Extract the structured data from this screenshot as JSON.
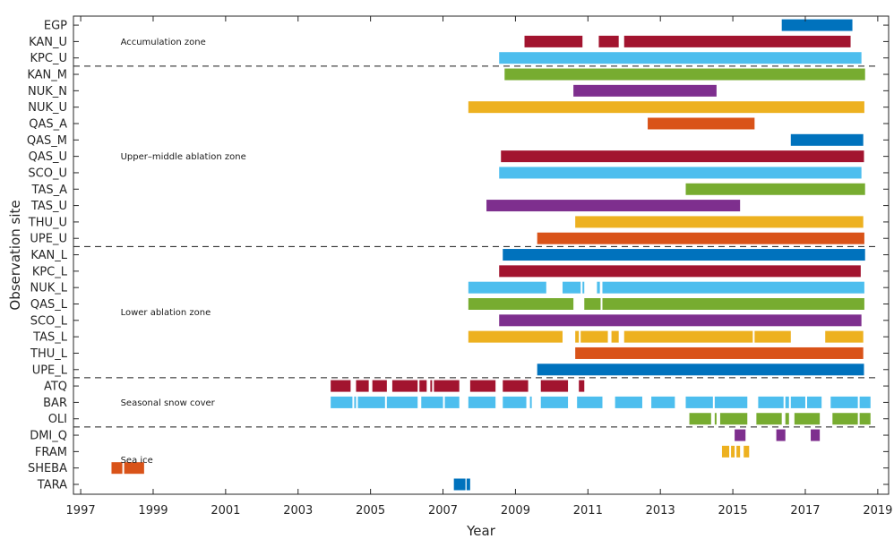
{
  "chart_data": {
    "type": "timeline",
    "xlabel": "Year",
    "ylabel": "Observation site",
    "xlim": [
      1996.8,
      2019.3
    ],
    "x_ticks": [
      1997,
      1999,
      2001,
      2003,
      2005,
      2007,
      2009,
      2011,
      2013,
      2015,
      2017,
      2019
    ],
    "grid": false,
    "colors": [
      "#0072BD",
      "#A2142F",
      "#4DBEEE",
      "#77AC30",
      "#7E2F8E",
      "#EDB120",
      "#D95319"
    ],
    "rows": [
      {
        "site": "EGP",
        "color": "#0072BD",
        "segments": [
          [
            2016.35,
            2018.3
          ]
        ]
      },
      {
        "site": "KAN_U",
        "color": "#A2142F",
        "segments": [
          [
            2009.25,
            2010.85
          ],
          [
            2011.3,
            2011.85
          ],
          [
            2012.0,
            2018.25
          ]
        ]
      },
      {
        "site": "KPC_U",
        "color": "#4DBEEE",
        "segments": [
          [
            2008.55,
            2018.55
          ]
        ]
      },
      {
        "site": "KAN_M",
        "color": "#77AC30",
        "segments": [
          [
            2008.7,
            2018.65
          ]
        ]
      },
      {
        "site": "NUK_N",
        "color": "#7E2F8E",
        "segments": [
          [
            2010.6,
            2014.55
          ]
        ]
      },
      {
        "site": "NUK_U",
        "color": "#EDB120",
        "segments": [
          [
            2007.7,
            2018.63
          ]
        ]
      },
      {
        "site": "QAS_A",
        "color": "#D95319",
        "segments": [
          [
            2012.65,
            2015.6
          ]
        ]
      },
      {
        "site": "QAS_M",
        "color": "#0072BD",
        "segments": [
          [
            2016.6,
            2018.6
          ]
        ]
      },
      {
        "site": "QAS_U",
        "color": "#A2142F",
        "segments": [
          [
            2008.6,
            2018.62
          ]
        ]
      },
      {
        "site": "SCO_U",
        "color": "#4DBEEE",
        "segments": [
          [
            2008.55,
            2018.55
          ]
        ]
      },
      {
        "site": "TAS_A",
        "color": "#77AC30",
        "segments": [
          [
            2013.7,
            2018.65
          ]
        ]
      },
      {
        "site": "TAS_U",
        "color": "#7E2F8E",
        "segments": [
          [
            2008.2,
            2015.2
          ]
        ]
      },
      {
        "site": "THU_U",
        "color": "#EDB120",
        "segments": [
          [
            2010.65,
            2018.6
          ]
        ]
      },
      {
        "site": "UPE_U",
        "color": "#D95319",
        "segments": [
          [
            2009.6,
            2018.63
          ]
        ]
      },
      {
        "site": "KAN_L",
        "color": "#0072BD",
        "segments": [
          [
            2008.65,
            2018.65
          ]
        ]
      },
      {
        "site": "KPC_L",
        "color": "#A2142F",
        "segments": [
          [
            2008.55,
            2018.53
          ]
        ]
      },
      {
        "site": "NUK_L",
        "color": "#4DBEEE",
        "segments": [
          [
            2007.7,
            2009.85
          ],
          [
            2010.3,
            2010.8
          ],
          [
            2010.85,
            2010.9
          ],
          [
            2011.25,
            2011.33
          ],
          [
            2011.4,
            2018.63
          ]
        ]
      },
      {
        "site": "QAS_L",
        "color": "#77AC30",
        "segments": [
          [
            2007.7,
            2010.6
          ],
          [
            2010.9,
            2011.35
          ],
          [
            2011.4,
            2018.63
          ]
        ]
      },
      {
        "site": "SCO_L",
        "color": "#7E2F8E",
        "segments": [
          [
            2008.55,
            2018.55
          ]
        ]
      },
      {
        "site": "TAS_L",
        "color": "#EDB120",
        "segments": [
          [
            2007.7,
            2010.3
          ],
          [
            2010.65,
            2010.75
          ],
          [
            2010.8,
            2011.55
          ],
          [
            2011.65,
            2011.85
          ],
          [
            2012.0,
            2015.55
          ],
          [
            2015.6,
            2016.6
          ],
          [
            2017.55,
            2018.6
          ]
        ]
      },
      {
        "site": "THU_L",
        "color": "#D95319",
        "segments": [
          [
            2010.65,
            2018.6
          ]
        ]
      },
      {
        "site": "UPE_L",
        "color": "#0072BD",
        "segments": [
          [
            2009.6,
            2018.62
          ]
        ]
      },
      {
        "site": "ATQ",
        "color": "#A2142F",
        "segments": [
          [
            2003.9,
            2004.45
          ],
          [
            2004.6,
            2004.95
          ],
          [
            2005.05,
            2005.45
          ],
          [
            2005.6,
            2006.3
          ],
          [
            2006.35,
            2006.55
          ],
          [
            2006.65,
            2006.7
          ],
          [
            2006.75,
            2007.45
          ],
          [
            2007.75,
            2008.45
          ],
          [
            2008.65,
            2009.35
          ],
          [
            2009.7,
            2010.45
          ],
          [
            2010.75,
            2010.9
          ]
        ]
      },
      {
        "site": "BAR",
        "color": "#4DBEEE",
        "segments": [
          [
            2003.9,
            2004.5
          ],
          [
            2004.55,
            2004.6
          ],
          [
            2004.65,
            2005.4
          ],
          [
            2005.45,
            2006.3
          ],
          [
            2006.4,
            2007.0
          ],
          [
            2007.05,
            2007.45
          ],
          [
            2007.7,
            2008.45
          ],
          [
            2008.65,
            2009.3
          ],
          [
            2009.4,
            2009.45
          ],
          [
            2009.7,
            2010.45
          ],
          [
            2010.7,
            2011.4
          ],
          [
            2011.75,
            2012.5
          ],
          [
            2012.75,
            2013.4
          ],
          [
            2013.7,
            2014.45
          ],
          [
            2014.5,
            2015.4
          ],
          [
            2015.7,
            2016.4
          ],
          [
            2016.45,
            2016.55
          ],
          [
            2016.6,
            2017.0
          ],
          [
            2017.05,
            2017.45
          ],
          [
            2017.7,
            2018.45
          ],
          [
            2018.5,
            2018.8
          ]
        ]
      },
      {
        "site": "OLI",
        "color": "#77AC30",
        "segments": [
          [
            2013.8,
            2014.4
          ],
          [
            2014.5,
            2014.55
          ],
          [
            2014.65,
            2015.4
          ],
          [
            2015.65,
            2016.35
          ],
          [
            2016.45,
            2016.55
          ],
          [
            2016.7,
            2017.4
          ],
          [
            2017.75,
            2018.45
          ],
          [
            2018.5,
            2018.8
          ]
        ]
      },
      {
        "site": "DMI_Q",
        "color": "#7E2F8E",
        "segments": [
          [
            2015.05,
            2015.35
          ],
          [
            2016.2,
            2016.45
          ],
          [
            2017.15,
            2017.4
          ]
        ]
      },
      {
        "site": "FRAM",
        "color": "#EDB120",
        "segments": [
          [
            2014.7,
            2014.9
          ],
          [
            2014.95,
            2015.05
          ],
          [
            2015.1,
            2015.2
          ],
          [
            2015.3,
            2015.45
          ]
        ]
      },
      {
        "site": "SHEBA",
        "color": "#D95319",
        "segments": [
          [
            1997.85,
            1998.15
          ],
          [
            1998.2,
            1998.75
          ]
        ]
      },
      {
        "site": "TARA",
        "color": "#0072BD",
        "segments": [
          [
            2007.3,
            2007.62
          ],
          [
            2007.65,
            2007.75
          ]
        ]
      }
    ],
    "zones": [
      {
        "label": "Accumulation zone",
        "rows_start": 0,
        "rows_end": 2
      },
      {
        "label": "Upper–middle ablation zone",
        "rows_start": 3,
        "rows_end": 13
      },
      {
        "label": "Lower ablation zone",
        "rows_start": 14,
        "rows_end": 21
      },
      {
        "label": "Seasonal snow cover",
        "rows_start": 22,
        "rows_end": 24
      },
      {
        "label": "Sea ice",
        "rows_start": 25,
        "rows_end": 28
      }
    ],
    "zone_label_x": 1998.1
  }
}
